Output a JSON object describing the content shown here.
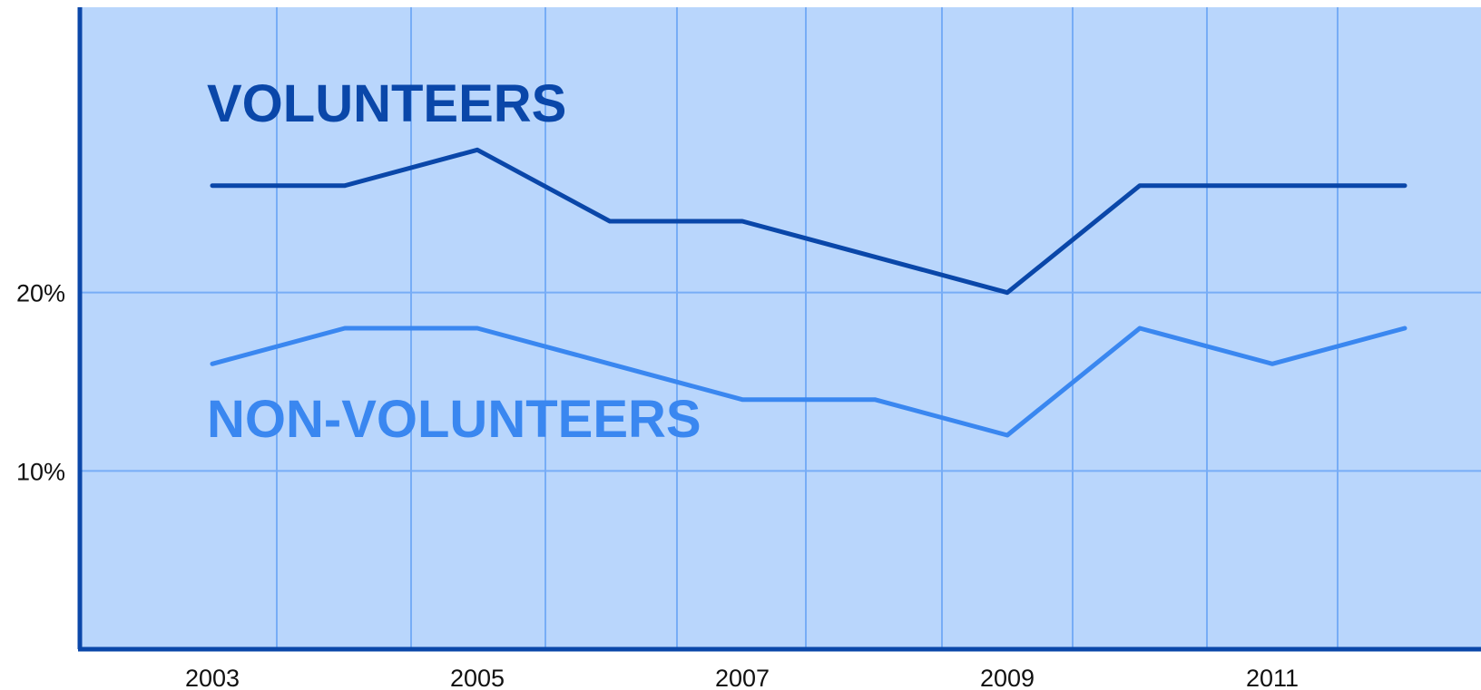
{
  "chart_data": {
    "type": "line",
    "x": [
      2003,
      2004,
      2005,
      2006,
      2007,
      2008,
      2009,
      2010,
      2011,
      2012
    ],
    "x_tick_labels": [
      "2003",
      "2005",
      "2007",
      "2009",
      "2011"
    ],
    "y_tick_labels": [
      "10%",
      "20%"
    ],
    "y_ticks": [
      10,
      20
    ],
    "ylim": [
      0,
      36
    ],
    "grid": true,
    "series": [
      {
        "name": "VOLUNTEERS",
        "values": [
          26,
          26,
          28,
          24,
          24,
          22,
          20,
          26,
          26,
          26
        ],
        "color": "#0a47a9"
      },
      {
        "name": "NON-VOLUNTEERS",
        "values": [
          16,
          18,
          18,
          16,
          14,
          14,
          12,
          18,
          16,
          18
        ],
        "color": "#3a87f0"
      }
    ],
    "colors": {
      "plot_background": "#b9d6fc",
      "grid": "#77adf6",
      "axis": "#0a47a9"
    }
  }
}
